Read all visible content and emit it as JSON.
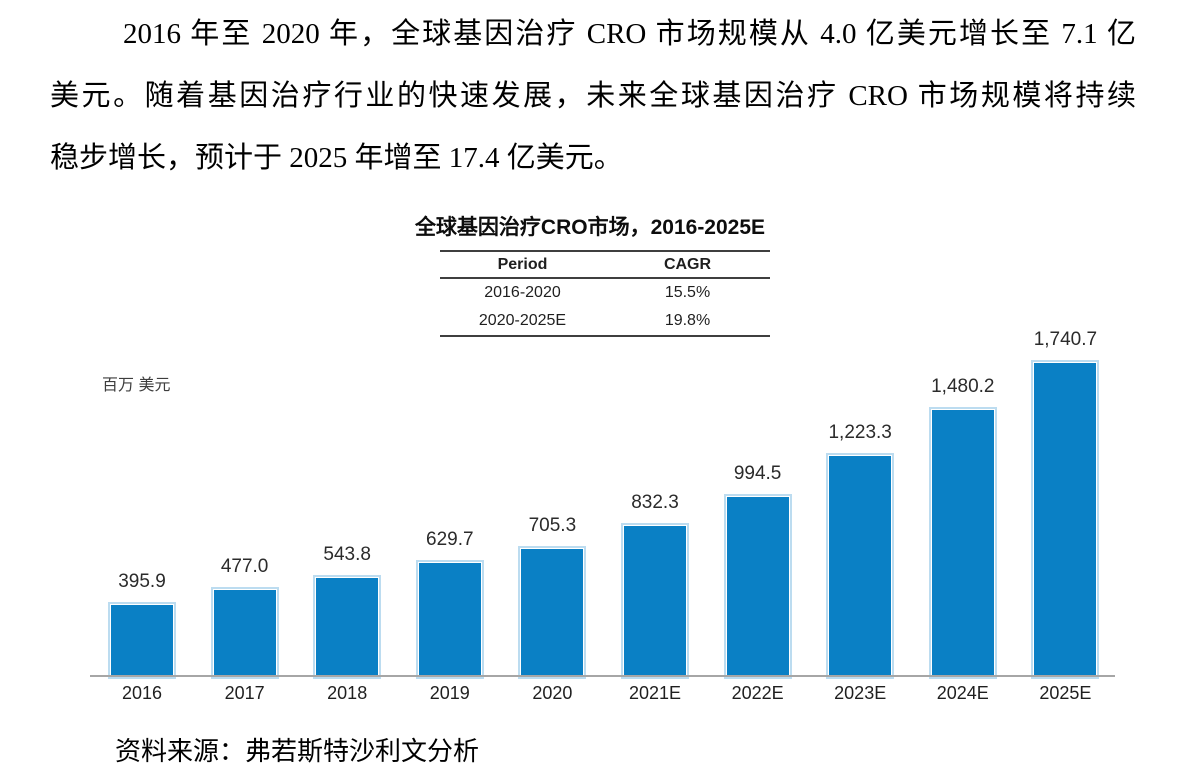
{
  "document": {
    "paragraph_lines": [
      "2016 年至 2020 年，全球基因治疗 CRO 市场规模从 4.0 亿美元增长至 7.1 亿",
      "美元。随着基因治疗行业的快速发展，未来全球基因治疗 CRO 市场规模将持续",
      "稳步增长，预计于 2025 年增至 17.4 亿美元。"
    ],
    "source": "资料来源：弗若斯特沙利文分析"
  },
  "chart": {
    "title": "全球基因治疗CRO市场，2016-2025E",
    "unit_label": "百万 美元",
    "cagr_table": {
      "headers": [
        "Period",
        "CAGR"
      ],
      "rows": [
        [
          "2016-2020",
          "15.5%"
        ],
        [
          "2020-2025E",
          "19.8%"
        ]
      ]
    }
  },
  "chart_data": {
    "type": "bar",
    "title": "全球基因治疗CRO市场，2016-2025E",
    "categories": [
      "2016",
      "2017",
      "2018",
      "2019",
      "2020",
      "2021E",
      "2022E",
      "2023E",
      "2024E",
      "2025E"
    ],
    "values": [
      395.9,
      477.0,
      543.8,
      629.7,
      705.3,
      832.3,
      994.5,
      1223.3,
      1480.2,
      1740.7
    ],
    "value_labels": [
      "395.9",
      "477.0",
      "543.8",
      "629.7",
      "705.3",
      "832.3",
      "994.5",
      "1,223.3",
      "1,480.2",
      "1,740.7"
    ],
    "ylabel": "百万 美元",
    "xlabel": "",
    "ylim": [
      0,
      1900
    ],
    "grid": false,
    "legend": false,
    "bar_color": "#0a80c5",
    "bar_edge_color": "#bcdcf0",
    "axis_color": "#a6a6a6",
    "annotations": [
      {
        "label": "CAGR 2016-2020",
        "value": "15.5%"
      },
      {
        "label": "CAGR 2020-2025E",
        "value": "19.8%"
      }
    ]
  }
}
